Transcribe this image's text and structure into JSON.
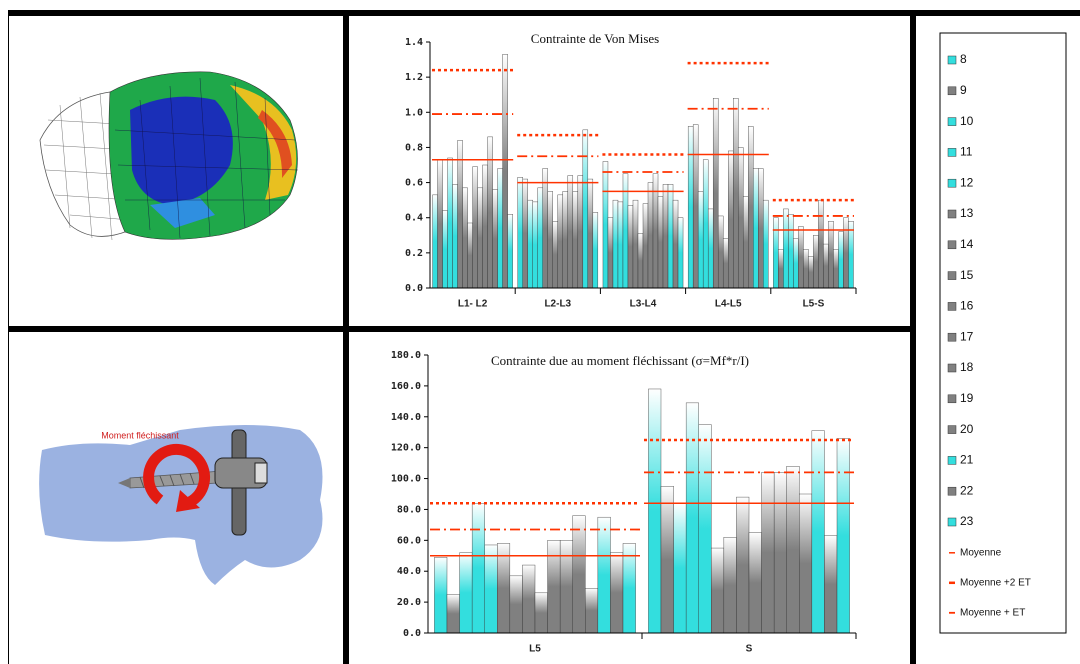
{
  "chart_data": [
    {
      "type": "bar",
      "title": "Contrainte de Von Mises",
      "categories": [
        "L1- L2",
        "L2-L3",
        "L3-L4",
        "L4-L5",
        "L5-S"
      ],
      "ylim": [
        0,
        1.4
      ],
      "yticks": [
        {
          "value": 0,
          "label": "0.0"
        },
        0.2,
        0.4,
        0.6,
        0.8,
        {
          "value": 1,
          "label": "1.0"
        },
        1.2,
        1.4
      ],
      "series": [
        {
          "name": "8",
          "color": "#33dede",
          "values": [
            0.53,
            0.63,
            0.72,
            0.92,
            0.4
          ]
        },
        {
          "name": "9",
          "color": "#808080",
          "values": [
            0.73,
            0.62,
            0.4,
            0.93,
            0.22
          ]
        },
        {
          "name": "10",
          "color": "#33dede",
          "values": [
            0.44,
            0.5,
            0.5,
            0.55,
            0.45
          ]
        },
        {
          "name": "11",
          "color": "#33dede",
          "values": [
            0.74,
            0.49,
            0.49,
            0.73,
            0.42
          ]
        },
        {
          "name": "12",
          "color": "#33dede",
          "values": [
            0.59,
            0.57,
            0.65,
            0.45,
            0.28
          ]
        },
        {
          "name": "13",
          "color": "#808080",
          "values": [
            0.84,
            0.68,
            0.47,
            1.08,
            0.35
          ]
        },
        {
          "name": "14",
          "color": "#808080",
          "values": [
            0.57,
            0.55,
            0.5,
            0.41,
            0.22
          ]
        },
        {
          "name": "15",
          "color": "#808080",
          "values": [
            0.37,
            0.38,
            0.31,
            0.28,
            0.18
          ]
        },
        {
          "name": "16",
          "color": "#808080",
          "values": [
            0.69,
            0.53,
            0.48,
            0.78,
            0.3
          ]
        },
        {
          "name": "17",
          "color": "#808080",
          "values": [
            0.57,
            0.55,
            0.6,
            1.08,
            0.5
          ]
        },
        {
          "name": "18",
          "color": "#808080",
          "values": [
            0.7,
            0.64,
            0.65,
            0.8,
            0.25
          ]
        },
        {
          "name": "19",
          "color": "#808080",
          "values": [
            0.86,
            0.55,
            0.52,
            0.52,
            0.38
          ]
        },
        {
          "name": "20",
          "color": "#808080",
          "values": [
            0.56,
            0.64,
            0.59,
            0.92,
            0.22
          ]
        },
        {
          "name": "21",
          "color": "#33dede",
          "values": [
            0.68,
            0.9,
            0.59,
            0.68,
            0.32
          ]
        },
        {
          "name": "22",
          "color": "#808080",
          "values": [
            1.33,
            0.62,
            0.5,
            0.68,
            0.4
          ]
        },
        {
          "name": "23",
          "color": "#33dede",
          "values": [
            0.42,
            0.43,
            0.4,
            0.5,
            0.38
          ]
        }
      ],
      "reference_lines": [
        {
          "name": "Moyenne",
          "color": "#ff3300",
          "style": "solid",
          "values": [
            0.73,
            0.6,
            0.55,
            0.76,
            0.33
          ]
        },
        {
          "name": "Moyenne +2 ET",
          "color": "#ff3300",
          "style": "dotted",
          "values": [
            1.24,
            0.87,
            0.76,
            1.28,
            0.5
          ]
        },
        {
          "name": "Moyenne + ET",
          "color": "#ff3300",
          "style": "dashdot",
          "values": [
            0.99,
            0.75,
            0.66,
            1.02,
            0.41
          ]
        }
      ]
    },
    {
      "type": "bar",
      "title": "Contrainte due au moment fléchissant (σ=Mf*r/I)",
      "categories": [
        "L5",
        "S"
      ],
      "ylim": [
        0,
        180
      ],
      "yticks": [
        {
          "value": 0,
          "label": "0.0"
        },
        {
          "value": 20,
          "label": "20.0"
        },
        {
          "value": 40,
          "label": "40.0"
        },
        {
          "value": 60,
          "label": "60.0"
        },
        {
          "value": 80,
          "label": "80.0"
        },
        {
          "value": 100,
          "label": "100.0"
        },
        {
          "value": 120,
          "label": "120.0"
        },
        {
          "value": 140,
          "label": "140.0"
        },
        {
          "value": 160,
          "label": "160.0"
        },
        {
          "value": 180,
          "label": "180.0"
        }
      ],
      "series": [
        {
          "name": "8",
          "color": "#33dede",
          "values": [
            49,
            158
          ]
        },
        {
          "name": "9",
          "color": "#808080",
          "values": [
            25,
            95
          ]
        },
        {
          "name": "10",
          "color": "#33dede",
          "values": [
            52,
            84
          ]
        },
        {
          "name": "11",
          "color": "#33dede",
          "values": [
            84,
            149
          ]
        },
        {
          "name": "12",
          "color": "#33dede",
          "values": [
            57,
            135
          ]
        },
        {
          "name": "13",
          "color": "#808080",
          "values": [
            58,
            55
          ]
        },
        {
          "name": "14",
          "color": "#808080",
          "values": [
            37,
            62
          ]
        },
        {
          "name": "15",
          "color": "#808080",
          "values": [
            44,
            88
          ]
        },
        {
          "name": "16",
          "color": "#808080",
          "values": [
            26,
            65
          ]
        },
        {
          "name": "17",
          "color": "#808080",
          "values": [
            60,
            104
          ]
        },
        {
          "name": "18",
          "color": "#808080",
          "values": [
            60,
            104
          ]
        },
        {
          "name": "19",
          "color": "#808080",
          "values": [
            76,
            108
          ]
        },
        {
          "name": "20",
          "color": "#808080",
          "values": [
            29,
            90
          ]
        },
        {
          "name": "21",
          "color": "#33dede",
          "values": [
            75,
            131
          ]
        },
        {
          "name": "22",
          "color": "#808080",
          "values": [
            52,
            63
          ]
        },
        {
          "name": "23",
          "color": "#33dede",
          "values": [
            58,
            126
          ]
        }
      ],
      "reference_lines": [
        {
          "name": "Moyenne",
          "color": "#ff3300",
          "style": "solid",
          "values": [
            50,
            84
          ]
        },
        {
          "name": "Moyenne +2 ET",
          "color": "#ff3300",
          "style": "dotted",
          "values": [
            84,
            125
          ]
        },
        {
          "name": "Moyenne + ET",
          "color": "#ff3300",
          "style": "dashdot",
          "values": [
            67,
            104
          ]
        }
      ]
    }
  ],
  "illustration": {
    "label": "Moment fléchissant"
  }
}
